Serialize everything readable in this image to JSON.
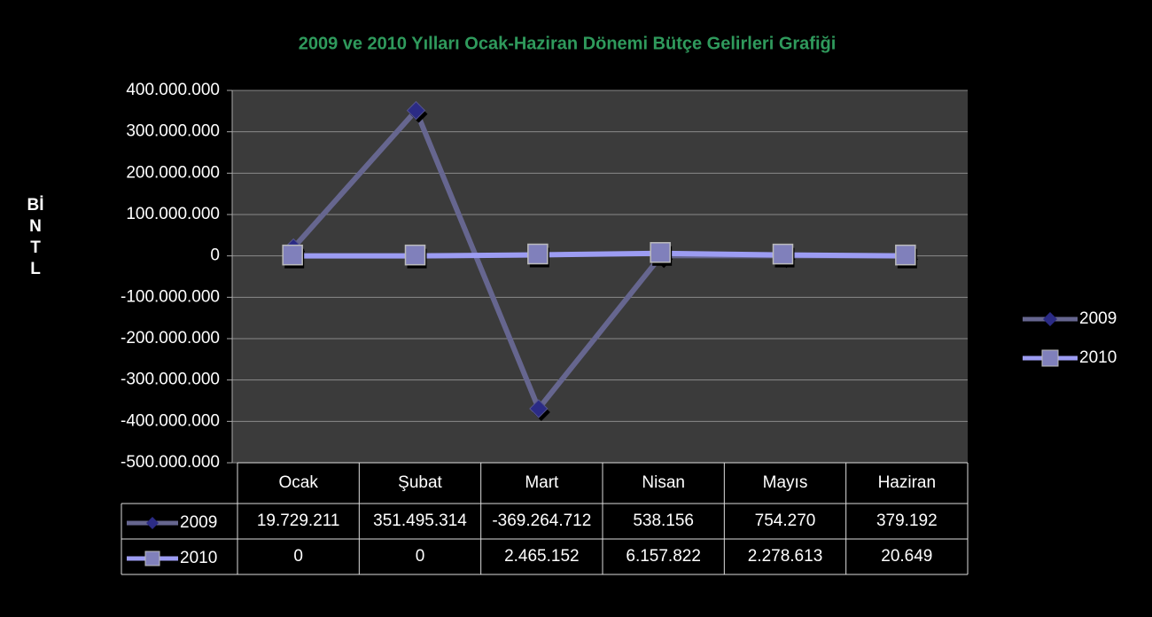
{
  "chart_data": {
    "type": "line",
    "title": "2009 ve 2010 Yılları Ocak-Haziran Dönemi Bütçe Gelirleri Grafiği",
    "y_label": "BİN TL",
    "categories": [
      "Ocak",
      "Şubat",
      "Mart",
      "Nisan",
      "Mayıs",
      "Haziran"
    ],
    "series": [
      {
        "name": "2009",
        "color": "#66668f",
        "marker_color": "#2b2b85",
        "marker": "diamond",
        "values": [
          19729211,
          351495314,
          -369264712,
          538156,
          754270,
          379192
        ],
        "value_labels": [
          "19.729.211",
          "351.495.314",
          "-369.264.712",
          "538.156",
          "754.270",
          "379.192"
        ]
      },
      {
        "name": "2010",
        "color": "#9c9cf2",
        "marker_color": "#8080bb",
        "marker": "square",
        "values": [
          0,
          0,
          2465152,
          6157822,
          2278613,
          20649
        ],
        "value_labels": [
          "0",
          "0",
          "2.465.152",
          "6.157.822",
          "2.278.613",
          "20.649"
        ]
      }
    ],
    "ylim": [
      -500000000,
      400000000
    ],
    "yticks": [
      {
        "value": 400000000,
        "label": "400.000.000"
      },
      {
        "value": 300000000,
        "label": "300.000.000"
      },
      {
        "value": 200000000,
        "label": "200.000.000"
      },
      {
        "value": 100000000,
        "label": "100.000.000"
      },
      0,
      {
        "value": -100000000,
        "label": "-100.000.000"
      },
      {
        "value": -200000000,
        "label": "-200.000.000"
      },
      {
        "value": -300000000,
        "label": "-300.000.000"
      },
      {
        "value": -400000000,
        "label": "-400.000.000"
      },
      {
        "value": -500000000,
        "label": "-500.000.000"
      }
    ],
    "grid": true,
    "legend": "right",
    "data_table": true
  }
}
